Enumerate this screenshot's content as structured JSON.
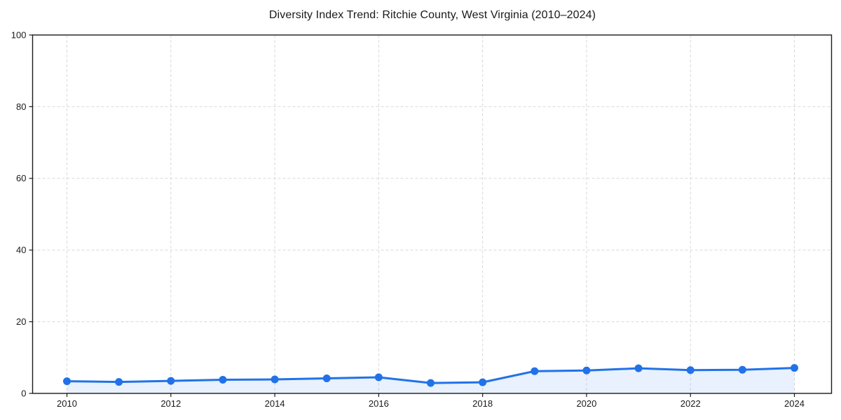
{
  "chart_data": {
    "type": "line",
    "title": "Diversity Index Trend: Ritchie County, West Virginia (2010–2024)",
    "series": [
      {
        "name": "Diversity Index",
        "x": [
          2010,
          2011,
          2012,
          2013,
          2014,
          2015,
          2016,
          2017,
          2018,
          2019,
          2020,
          2021,
          2022,
          2023,
          2024
        ],
        "values": [
          3.4,
          3.2,
          3.5,
          3.8,
          3.9,
          4.2,
          4.5,
          2.9,
          3.1,
          6.2,
          6.4,
          7.0,
          6.5,
          6.6,
          7.1
        ]
      }
    ],
    "xlabel": "",
    "ylabel": "",
    "xlim": [
      2010,
      2024
    ],
    "ylim": [
      0,
      100
    ],
    "xticks": [
      2010,
      2012,
      2014,
      2016,
      2018,
      2020,
      2022,
      2024
    ],
    "yticks": [
      0,
      20,
      40,
      60,
      80,
      100
    ],
    "grid": true,
    "grid_style": "dashed",
    "legend": false,
    "marker": "circle",
    "area_fill": true,
    "colors": {
      "line": "#2172e8",
      "marker": "#2172e8",
      "fill": "#2172e8",
      "fill_opacity": 0.1,
      "grid": "#d9d9d9",
      "axis": "#1a1a1a",
      "tick_label": "#1a1a1a",
      "background": "#ffffff"
    }
  }
}
